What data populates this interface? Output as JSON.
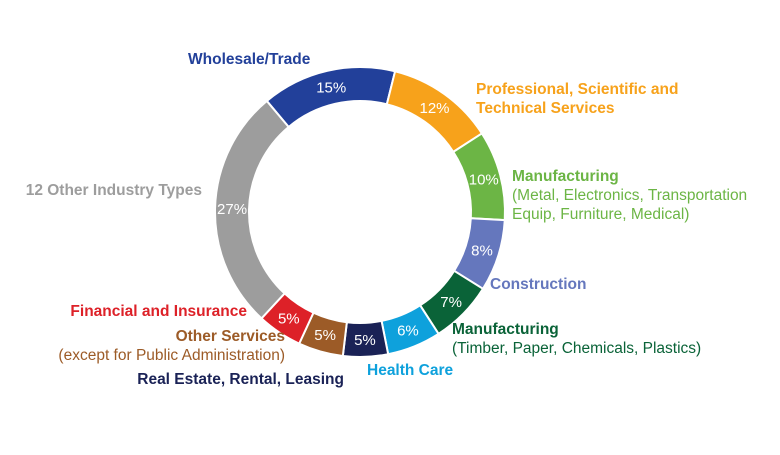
{
  "chart_data": {
    "type": "pie",
    "variant": "donut",
    "slices": [
      {
        "label": "Wholesale/Trade",
        "sublabel": "",
        "value": 15,
        "value_label": "15%",
        "color": "#22409a"
      },
      {
        "label": "Professional, Scientific and",
        "sublabel": "Technical Services",
        "value": 12,
        "value_label": "12%",
        "color": "#f7a21b"
      },
      {
        "label": "Manufacturing",
        "sublabel": "(Metal, Electronics, Transportation|Equip, Furniture, Medical)",
        "value": 10,
        "value_label": "10%",
        "color": "#6cb545"
      },
      {
        "label": "Construction",
        "sublabel": "",
        "value": 8,
        "value_label": "8%",
        "color": "#6577bd"
      },
      {
        "label": "Manufacturing",
        "sublabel": "(Timber, Paper, Chemicals, Plastics)",
        "value": 7,
        "value_label": "7%",
        "color": "#0a6338"
      },
      {
        "label": "Health Care",
        "sublabel": "",
        "value": 6,
        "value_label": "6%",
        "color": "#0ea1dc"
      },
      {
        "label": "Real Estate, Rental, Leasing",
        "sublabel": "",
        "value": 5,
        "value_label": "5%",
        "color": "#1a2256"
      },
      {
        "label": "Other Services",
        "sublabel": "(except for Public Administration)",
        "value": 5,
        "value_label": "5%",
        "color": "#9c5b27"
      },
      {
        "label": "Financial and Insurance",
        "sublabel": "",
        "value": 5,
        "value_label": "5%",
        "color": "#dd2128"
      },
      {
        "label": "12 Other Industry Types",
        "sublabel": "",
        "value": 27,
        "value_label": "27%",
        "color": "#9d9d9d"
      }
    ],
    "start_angle_deg": -40,
    "direction": "clockwise"
  }
}
